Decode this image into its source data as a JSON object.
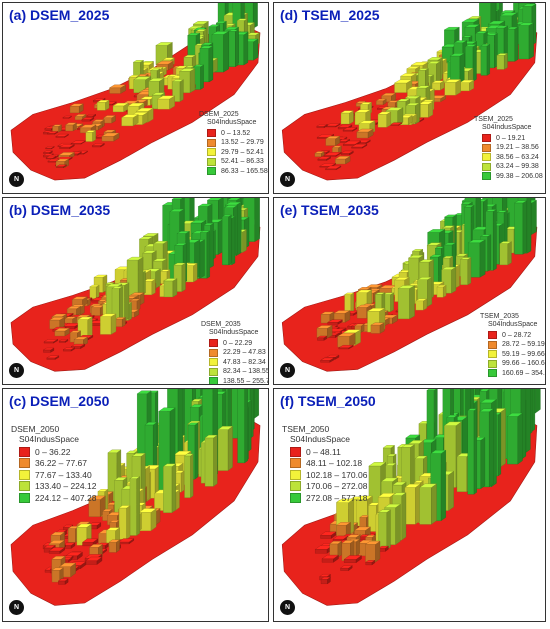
{
  "panels": [
    {
      "title": "(a) DSEM_2025",
      "legend": {
        "title": "DSEM_2025",
        "subtitle": "S04IndusSpace",
        "classes": [
          "0 – 13.52",
          "13.52 – 29.79",
          "29.79 – 52.41",
          "52.41 – 86.33",
          "86.33 – 165.58"
        ]
      }
    },
    {
      "title": "(d) TSEM_2025",
      "legend": {
        "title": "TSEM_2025",
        "subtitle": "S04IndusSpace",
        "classes": [
          "0 – 19.21",
          "19.21 – 38.56",
          "38.56 – 63.24",
          "63.24 – 99.38",
          "99.38 – 206.08"
        ]
      }
    },
    {
      "title": "(b) DSEM_2035",
      "legend": {
        "title": "DSEM_2035",
        "subtitle": "S04IndusSpace",
        "classes": [
          "0 – 22.29",
          "22.29 – 47.83",
          "47.83 – 82.34",
          "82.34 – 138.55",
          "138.55 – 255.78"
        ]
      }
    },
    {
      "title": "(e) TSEM_2035",
      "legend": {
        "title": "TSEM_2035",
        "subtitle": "S04IndusSpace",
        "classes": [
          "0 – 28.72",
          "28.72 – 59.19",
          "59.19 – 99.66",
          "99.66 – 160.69",
          "160.69 – 354.52"
        ]
      }
    },
    {
      "title": "(c) DSEM_2050",
      "legend": {
        "title": "DSEM_2050",
        "subtitle": "S04IndusSpace",
        "classes": [
          "0 – 36.22",
          "36.22 – 77.67",
          "77.67 – 133.40",
          "133.40 – 224.12",
          "224.12 – 407.28"
        ]
      }
    },
    {
      "title": "(f) TSEM_2050",
      "legend": {
        "title": "TSEM_2050",
        "subtitle": "S04IndusSpace",
        "classes": [
          "0 – 48.11",
          "48.11 – 102.18",
          "102.18 – 170.06",
          "170.06 – 272.08",
          "272.08 – 577.18"
        ]
      }
    }
  ],
  "class_colors": [
    "#e8231c",
    "#ef8a2e",
    "#f2f23a",
    "#bde33a",
    "#37c93a"
  ],
  "north_arrow_label": "N"
}
